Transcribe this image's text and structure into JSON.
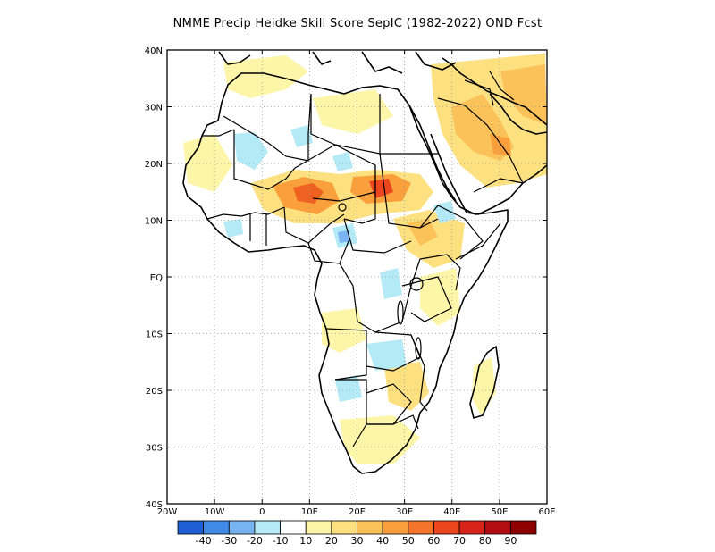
{
  "title": "NMME Precip Heidke Skill Score SepIC (1982-2022) OND Fcst",
  "axes": {
    "lon_labels": [
      "20W",
      "10W",
      "0",
      "10E",
      "20E",
      "30E",
      "40E",
      "50E",
      "60E"
    ],
    "lat_labels": [
      "40N",
      "30N",
      "20N",
      "10N",
      "EQ",
      "10S",
      "20S",
      "30S",
      "40S"
    ],
    "lon_range": [
      -20,
      60
    ],
    "lat_range": [
      -40,
      40
    ],
    "grid": "dotted"
  },
  "colorbar": {
    "labels": [
      "-40",
      "-30",
      "-20",
      "-10",
      "10",
      "20",
      "30",
      "40",
      "50",
      "60",
      "70",
      "80",
      "90"
    ],
    "colors": [
      "#1f5fd6",
      "#3f8ae6",
      "#78b4f2",
      "#b4eaf6",
      "#ffffff",
      "#fdf6a8",
      "#fde080",
      "#fbc25a",
      "#f9a03c",
      "#f4742a",
      "#ec461e",
      "#d8231a",
      "#b40e12",
      "#8e0000"
    ]
  },
  "regions": [
    {
      "name": "west-sahel-max",
      "lon": 9,
      "lat": 13.5,
      "color": "#f06020"
    },
    {
      "name": "sudan-max",
      "lon": 25,
      "lat": 14,
      "color": "#ec461e"
    },
    {
      "name": "arabia-positive",
      "lon": 43,
      "lat": 24,
      "color": "#fbc25a"
    },
    {
      "name": "east-africa-positive",
      "lon": 34,
      "lat": 8,
      "color": "#fbc25a"
    },
    {
      "name": "sahara-negative",
      "lon": 5,
      "lat": 21,
      "color": "#b4eaf6"
    },
    {
      "name": "gulf-guinea-negative",
      "lon": 16,
      "lat": 7,
      "color": "#78b4f2"
    }
  ]
}
